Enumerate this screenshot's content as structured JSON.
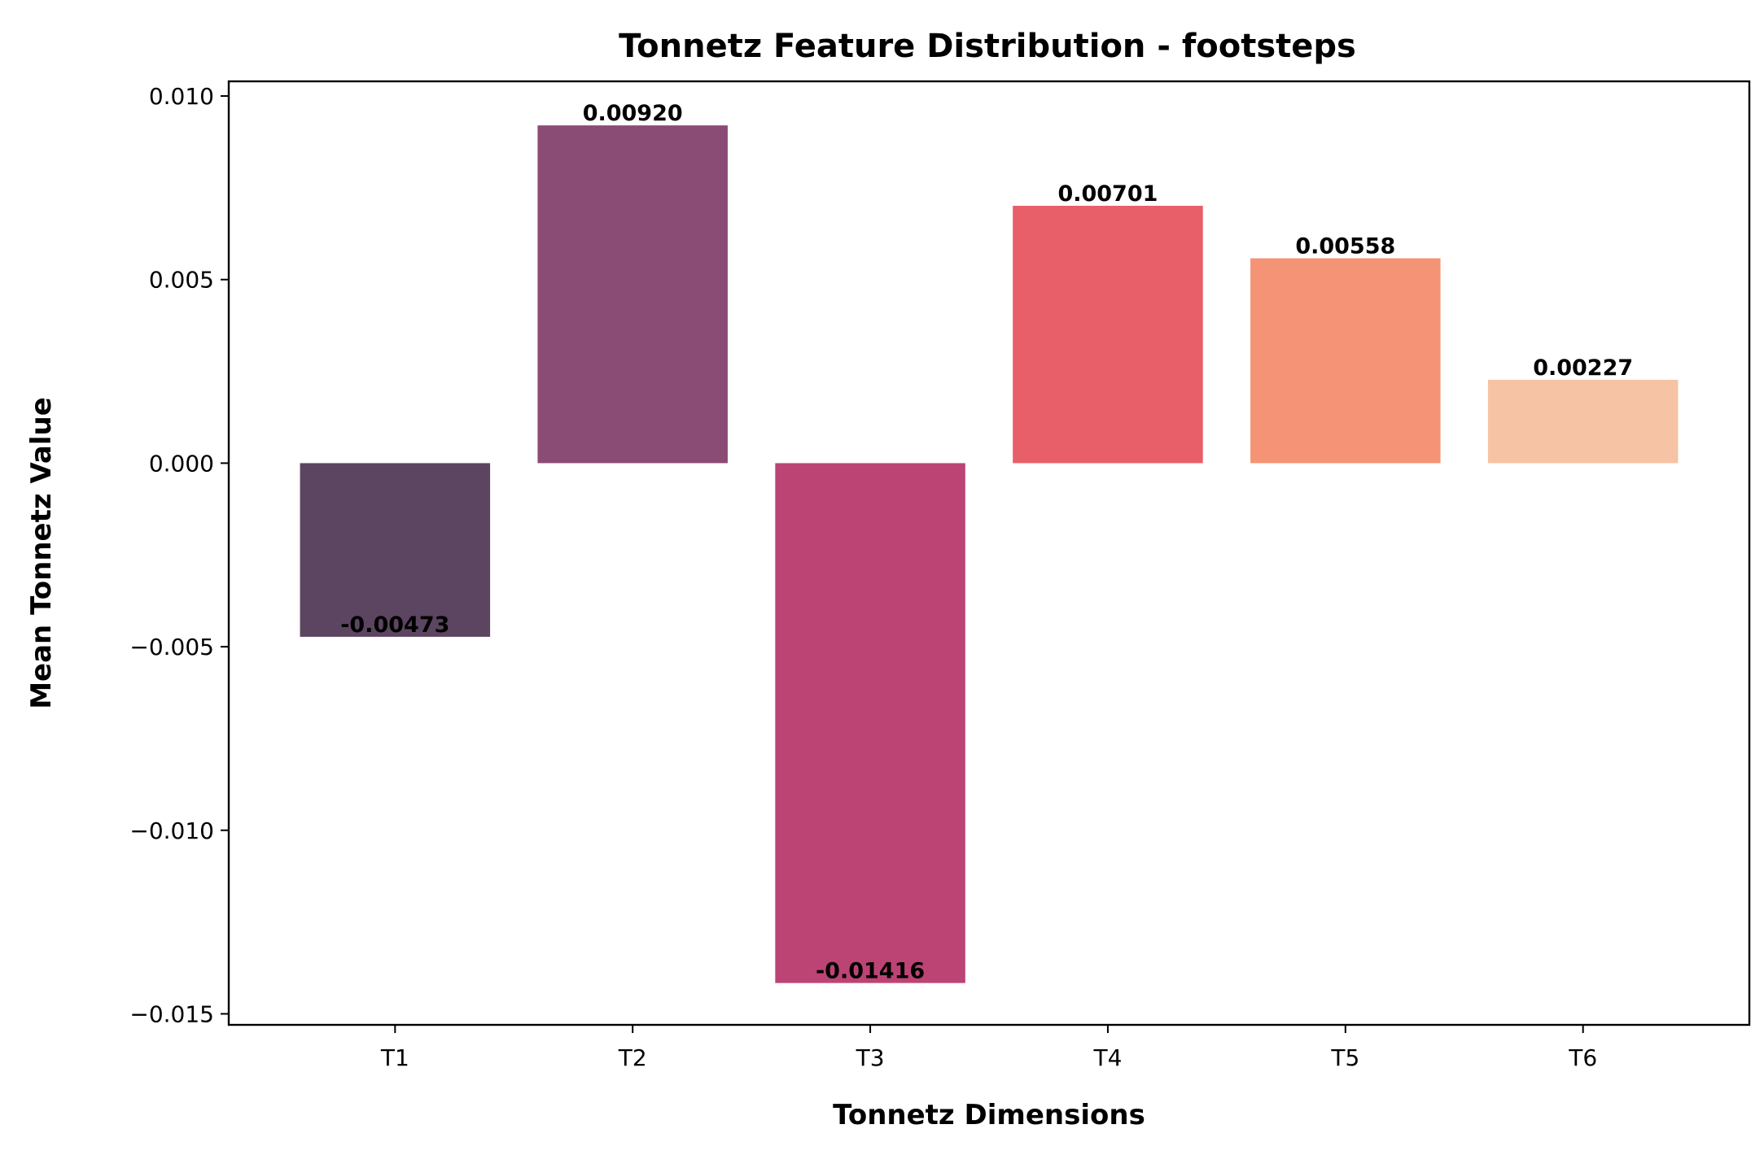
{
  "chart_data": {
    "type": "bar",
    "title": "Tonnetz Feature Distribution - footsteps",
    "xlabel": "Tonnetz Dimensions",
    "ylabel": "Mean Tonnetz Value",
    "categories": [
      "T1",
      "T2",
      "T3",
      "T4",
      "T5",
      "T6"
    ],
    "values": [
      -0.00473,
      0.0092,
      -0.01416,
      0.00701,
      0.00558,
      0.00227
    ],
    "value_labels": [
      "-0.00473",
      "0.00920",
      "-0.01416",
      "0.00701",
      "0.00558",
      "0.00227"
    ],
    "colors": [
      "#5c4561",
      "#8a4b74",
      "#bc4475",
      "#e85e69",
      "#f49375",
      "#f6c3a5"
    ],
    "ylim": [
      -0.0153,
      0.0104
    ],
    "yticks": [
      0.01,
      0.005,
      0.0,
      -0.005,
      -0.01,
      -0.015
    ],
    "ytick_labels": [
      "0.010",
      "0.005",
      "0.000",
      "−0.005",
      "−0.010",
      "−0.015"
    ],
    "grid": false,
    "legend": "none"
  }
}
